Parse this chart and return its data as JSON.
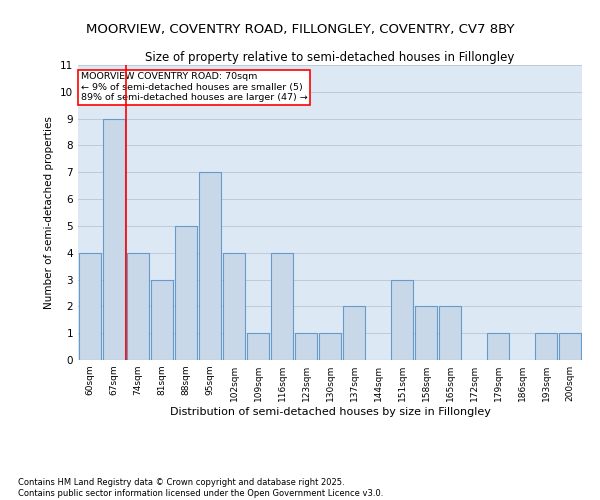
{
  "title1": "MOORVIEW, COVENTRY ROAD, FILLONGLEY, COVENTRY, CV7 8BY",
  "title2": "Size of property relative to semi-detached houses in Fillongley",
  "categories": [
    "60sqm",
    "67sqm",
    "74sqm",
    "81sqm",
    "88sqm",
    "95sqm",
    "102sqm",
    "109sqm",
    "116sqm",
    "123sqm",
    "130sqm",
    "137sqm",
    "144sqm",
    "151sqm",
    "158sqm",
    "165sqm",
    "172sqm",
    "179sqm",
    "186sqm",
    "193sqm",
    "200sqm"
  ],
  "values": [
    4,
    9,
    4,
    3,
    5,
    7,
    4,
    1,
    4,
    1,
    1,
    2,
    0,
    3,
    2,
    2,
    0,
    1,
    0,
    1,
    1
  ],
  "bar_color": "#c8d8e8",
  "bar_edge_color": "#6699cc",
  "xlabel": "Distribution of semi-detached houses by size in Fillongley",
  "ylabel": "Number of semi-detached properties",
  "ylim": [
    0,
    11
  ],
  "yticks": [
    0,
    1,
    2,
    3,
    4,
    5,
    6,
    7,
    8,
    9,
    10,
    11
  ],
  "grid_color": "#c0c8d8",
  "background_color": "#dce9f5",
  "annotation_title": "MOORVIEW COVENTRY ROAD: 70sqm",
  "annotation_line1": "← 9% of semi-detached houses are smaller (5)",
  "annotation_line2": "89% of semi-detached houses are larger (47) →",
  "redline_x": 1.5,
  "footer1": "Contains HM Land Registry data © Crown copyright and database right 2025.",
  "footer2": "Contains public sector information licensed under the Open Government Licence v3.0."
}
